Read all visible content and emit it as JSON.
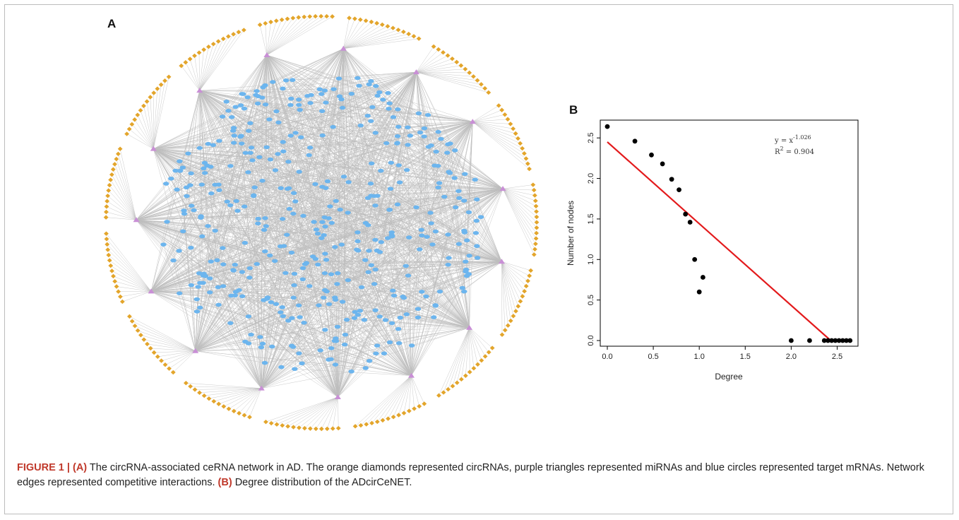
{
  "panel_a": {
    "label": "A",
    "colors": {
      "circrna": "#e3a52b",
      "mirna": "#c98fd6",
      "mrna": "#6cb5ee",
      "edge": "#bdbdbd"
    }
  },
  "panel_b": {
    "label": "B"
  },
  "chart_data": {
    "type": "scatter",
    "title": "",
    "xlabel": "Degree",
    "ylabel": "Number of nodes",
    "xlim": [
      0.0,
      2.65
    ],
    "ylim": [
      0.0,
      2.65
    ],
    "xticks": [
      "0.0",
      "0.5",
      "1.0",
      "1.5",
      "2.0",
      "2.5"
    ],
    "yticks": [
      "0.0",
      "0.5",
      "1.0",
      "1.5",
      "2.0",
      "2.5"
    ],
    "grid": false,
    "points": [
      [
        0.0,
        2.64
      ],
      [
        0.3,
        2.46
      ],
      [
        0.48,
        2.29
      ],
      [
        0.6,
        2.18
      ],
      [
        0.7,
        1.99
      ],
      [
        0.78,
        1.86
      ],
      [
        0.85,
        1.56
      ],
      [
        0.9,
        1.46
      ],
      [
        0.95,
        1.0
      ],
      [
        1.0,
        0.6
      ],
      [
        1.04,
        0.78
      ],
      [
        2.0,
        0.0
      ],
      [
        2.2,
        0.0
      ],
      [
        2.36,
        0.0
      ],
      [
        2.4,
        0.0
      ],
      [
        2.44,
        0.0
      ],
      [
        2.48,
        0.0
      ],
      [
        2.52,
        0.0
      ],
      [
        2.56,
        0.0
      ],
      [
        2.6,
        0.0
      ],
      [
        2.64,
        0.0
      ]
    ],
    "fit_line": {
      "x": [
        0.0,
        2.43
      ],
      "y": [
        2.45,
        0.0
      ],
      "color": "#e31a1c"
    },
    "point_color": "#000000",
    "annotation": {
      "eq_prefix": "y = x",
      "eq_exp": "-1.026",
      "r2_prefix": "R",
      "r2_exp": "2",
      "r2_value": " = 0.904"
    }
  },
  "caption": {
    "head": "FIGURE 1 | ",
    "a_label": "(A)",
    "text_a": " The circRNA-associated ceRNA network in AD. The orange diamonds represented circRNAs, purple triangles represented miRNAs and blue circles represented target mRNAs. Network edges represented competitive interactions. ",
    "b_label": "(B)",
    "text_b": " Degree distribution of the ADcirCeNET."
  }
}
